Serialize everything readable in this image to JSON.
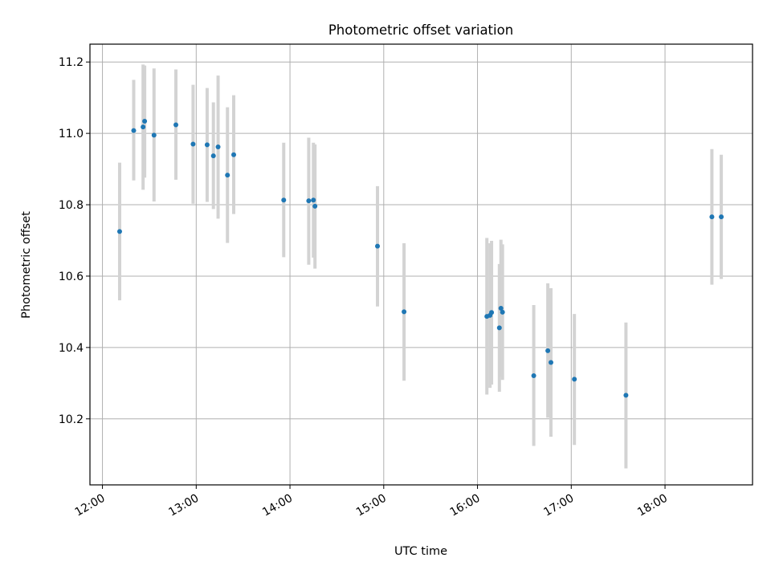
{
  "chart_data": {
    "type": "scatter",
    "title": "Photometric offset variation",
    "xlabel": "UTC time",
    "ylabel": "Photometric offset",
    "x_unit": "UTC time of day",
    "xlim": [
      "11:52",
      "18:56"
    ],
    "ylim": [
      10.015,
      11.25
    ],
    "x_ticks": [
      "12:00",
      "13:00",
      "14:00",
      "15:00",
      "16:00",
      "17:00",
      "18:00"
    ],
    "y_ticks": [
      "10.2",
      "10.4",
      "10.6",
      "10.8",
      "11.0",
      "11.2"
    ],
    "grid": true,
    "colors": {
      "point": "#1f77b4",
      "errorbar": "#d3d3d3",
      "grid": "#b0b0b0",
      "axes": "#000000"
    },
    "points": [
      {
        "x": "12:11",
        "y": 10.725,
        "err_low": 10.532,
        "err_high": 10.918
      },
      {
        "x": "12:20",
        "y": 11.008,
        "err_low": 10.868,
        "err_high": 11.15
      },
      {
        "x": "12:26",
        "y": 11.018,
        "err_low": 10.842,
        "err_high": 11.193
      },
      {
        "x": "12:27",
        "y": 11.034,
        "err_low": 10.876,
        "err_high": 11.19
      },
      {
        "x": "12:33",
        "y": 10.995,
        "err_low": 10.809,
        "err_high": 11.182
      },
      {
        "x": "12:47",
        "y": 11.024,
        "err_low": 10.87,
        "err_high": 11.179
      },
      {
        "x": "12:58",
        "y": 10.97,
        "err_low": 10.803,
        "err_high": 11.136
      },
      {
        "x": "13:07",
        "y": 10.968,
        "err_low": 10.808,
        "err_high": 11.127
      },
      {
        "x": "13:11",
        "y": 10.937,
        "err_low": 10.788,
        "err_high": 11.087
      },
      {
        "x": "13:14",
        "y": 10.962,
        "err_low": 10.761,
        "err_high": 11.162
      },
      {
        "x": "13:20",
        "y": 10.883,
        "err_low": 10.693,
        "err_high": 11.073
      },
      {
        "x": "13:24",
        "y": 10.94,
        "err_low": 10.774,
        "err_high": 11.107
      },
      {
        "x": "13:56",
        "y": 10.813,
        "err_low": 10.653,
        "err_high": 10.974
      },
      {
        "x": "14:12",
        "y": 10.811,
        "err_low": 10.632,
        "err_high": 10.988
      },
      {
        "x": "14:15",
        "y": 10.813,
        "err_low": 10.652,
        "err_high": 10.974
      },
      {
        "x": "14:16",
        "y": 10.796,
        "err_low": 10.621,
        "err_high": 10.969
      },
      {
        "x": "14:56",
        "y": 10.684,
        "err_low": 10.515,
        "err_high": 10.852
      },
      {
        "x": "15:13",
        "y": 10.5,
        "err_low": 10.307,
        "err_high": 10.692
      },
      {
        "x": "16:06",
        "y": 10.487,
        "err_low": 10.268,
        "err_high": 10.707
      },
      {
        "x": "16:08",
        "y": 10.49,
        "err_low": 10.287,
        "err_high": 10.692
      },
      {
        "x": "16:09",
        "y": 10.498,
        "err_low": 10.296,
        "err_high": 10.699
      },
      {
        "x": "16:14",
        "y": 10.455,
        "err_low": 10.276,
        "err_high": 10.634
      },
      {
        "x": "16:15",
        "y": 10.51,
        "err_low": 10.317,
        "err_high": 10.702
      },
      {
        "x": "16:16",
        "y": 10.499,
        "err_low": 10.309,
        "err_high": 10.689
      },
      {
        "x": "16:36",
        "y": 10.321,
        "err_low": 10.124,
        "err_high": 10.519
      },
      {
        "x": "16:45",
        "y": 10.391,
        "err_low": 10.203,
        "err_high": 10.58
      },
      {
        "x": "16:47",
        "y": 10.358,
        "err_low": 10.15,
        "err_high": 10.566
      },
      {
        "x": "17:02",
        "y": 10.311,
        "err_low": 10.127,
        "err_high": 10.494
      },
      {
        "x": "17:35",
        "y": 10.266,
        "err_low": 10.061,
        "err_high": 10.47
      },
      {
        "x": "18:30",
        "y": 10.766,
        "err_low": 10.576,
        "err_high": 10.956
      },
      {
        "x": "18:36",
        "y": 10.766,
        "err_low": 10.592,
        "err_high": 10.94
      }
    ]
  }
}
